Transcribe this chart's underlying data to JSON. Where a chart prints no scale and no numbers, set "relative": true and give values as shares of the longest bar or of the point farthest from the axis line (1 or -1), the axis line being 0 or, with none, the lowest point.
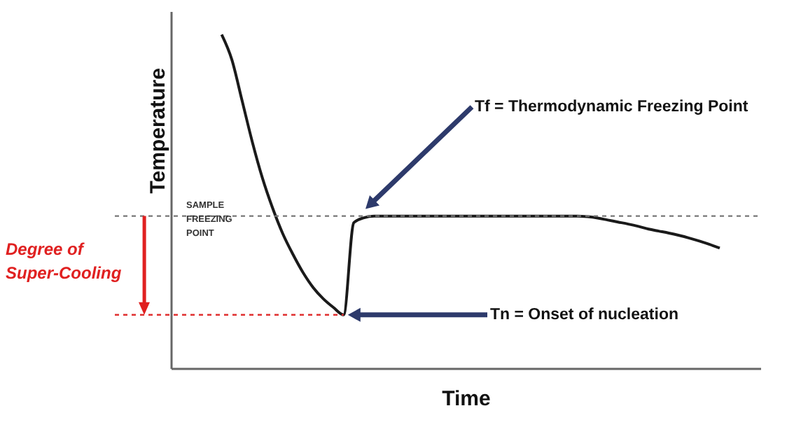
{
  "chart_data": {
    "type": "line",
    "relative": true,
    "xlabel": "Time",
    "ylabel": "Temperature",
    "categories": [
      null,
      null,
      null,
      null,
      null,
      null,
      null,
      null,
      null,
      null,
      null,
      null,
      null,
      null,
      null,
      null,
      null,
      null,
      null,
      null,
      null,
      null,
      null,
      null,
      null,
      null,
      null,
      null,
      null,
      null,
      null,
      null,
      null,
      null,
      null,
      null,
      null,
      null,
      null,
      null,
      null,
      null,
      null,
      null,
      null,
      null,
      null,
      null,
      null,
      null,
      null,
      null,
      null,
      null,
      null,
      null,
      null,
      null,
      null
    ],
    "series": [
      {
        "color": "#1a1a1a",
        "values": [
          null,
          null,
          null,
          null,
          null,
          1,
          0.925,
          0.803,
          0.68,
          0.571,
          0.481,
          0.404,
          0.342,
          0.287,
          0.242,
          0.208,
          0.182,
          0.16,
          0.436,
          0.451,
          0.456,
          0.456,
          0.456,
          0.456,
          0.456,
          0.456,
          0.456,
          0.456,
          0.456,
          0.456,
          0.456,
          0.456,
          0.456,
          0.456,
          0.456,
          0.456,
          0.456,
          0.456,
          0.456,
          0.456,
          0.456,
          0.454,
          0.45,
          0.444,
          0.438,
          0.432,
          0.425,
          0.417,
          0.411,
          0.405,
          0.398,
          0.39,
          0.381,
          0.371,
          0.36,
          null,
          null,
          null,
          null
        ]
      }
    ],
    "ref_lines": [
      {
        "axis": "y",
        "value": 0.456,
        "label": "SAMPLE FREEZING POINT",
        "color": "#777777",
        "line_style": "dashed"
      },
      {
        "axis": "y",
        "value": 0.16,
        "color": "#e03030",
        "line_style": "dashed"
      }
    ],
    "annotations": [
      "Tf = Thermodynamic Freezing Point",
      "Tn = Onset of nucleation",
      "Degree of Super-Cooling"
    ]
  }
}
